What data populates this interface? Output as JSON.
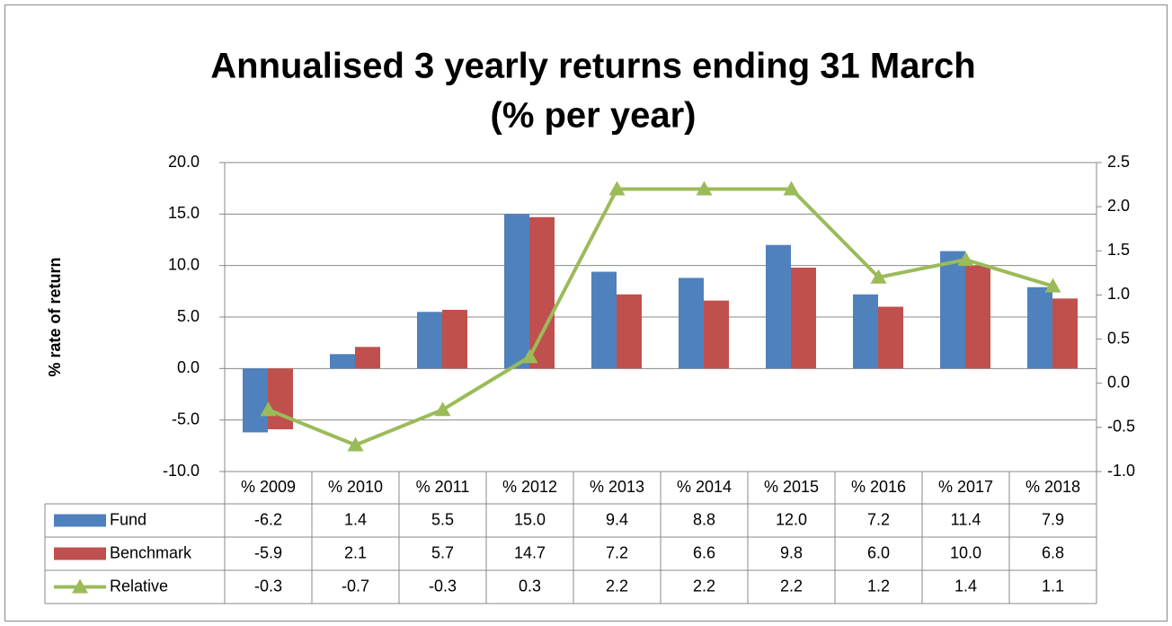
{
  "chart_data": {
    "type": "bar",
    "title": [
      "Annualised 3 yearly returns ending 31 March",
      "(% per year)"
    ],
    "y_label": "% rate of return",
    "categories": [
      "% 2009",
      "% 2010",
      "% 2011",
      "% 2012",
      "% 2013",
      "% 2014",
      "% 2015",
      "% 2016",
      "% 2017",
      "% 2018"
    ],
    "series": [
      {
        "name": "Fund",
        "type": "bar",
        "color": "#4f81bd",
        "values": [
          -6.2,
          1.4,
          5.5,
          15,
          9.4,
          8.8,
          12,
          7.2,
          11.4,
          7.9
        ],
        "value_labels": [
          "-6.2",
          "1.4",
          "5.5",
          "15.0",
          "9.4",
          "8.8",
          "12.0",
          "7.2",
          "11.4",
          "7.9"
        ]
      },
      {
        "name": "Benchmark",
        "type": "bar",
        "color": "#c0504d",
        "values": [
          -5.9,
          2.1,
          5.7,
          14.7,
          7.2,
          6.6,
          9.8,
          6,
          10,
          6.8
        ],
        "value_labels": [
          "-5.9",
          "2.1",
          "5.7",
          "14.7",
          "7.2",
          "6.6",
          "9.8",
          "6.0",
          "10.0",
          "6.8"
        ]
      },
      {
        "name": "Relative",
        "type": "line",
        "axis": "y2",
        "color": "#9bbb59",
        "values": [
          -0.3,
          -0.7,
          -0.3,
          0.3,
          2.2,
          2.2,
          2.2,
          1.2,
          1.4,
          1.1
        ]
      }
    ],
    "ylim": [
      -10,
      20
    ],
    "yticks": [
      {
        "value": -10,
        "label": "-10.0"
      },
      {
        "value": -5,
        "label": "-5.0"
      },
      {
        "value": 0,
        "label": "0.0"
      },
      {
        "value": 5,
        "label": "5.0"
      },
      {
        "value": 10,
        "label": "10.0"
      },
      {
        "value": 15,
        "label": "15.0"
      },
      {
        "value": 20,
        "label": "20.0"
      }
    ],
    "y2lim": [
      -1,
      2.5
    ],
    "y2ticks": [
      {
        "value": -1,
        "label": "-1.0"
      },
      -0.5,
      {
        "value": 0,
        "label": "0.0"
      },
      0.5,
      {
        "value": 1,
        "label": "1.0"
      },
      1.5,
      {
        "value": 2,
        "label": "2.0"
      },
      2.5
    ],
    "grid": true,
    "legend": "data-table"
  }
}
